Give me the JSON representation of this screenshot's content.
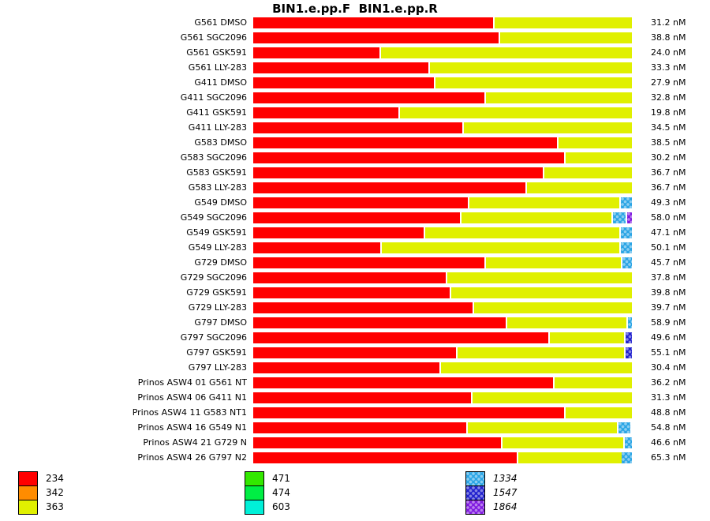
{
  "title": "BIN1.e.pp.F  BIN1.e.pp.R",
  "palette": {
    "234": {
      "hex": "#FF0000",
      "pattern": false
    },
    "342": {
      "hex": "#FF8C00",
      "pattern": false
    },
    "363": {
      "hex": "#E0F000",
      "pattern": false
    },
    "471": {
      "hex": "#33E800",
      "pattern": false
    },
    "474": {
      "hex": "#00EE44",
      "pattern": false
    },
    "603": {
      "hex": "#00F0D8",
      "pattern": false
    },
    "1334": {
      "hex": "#2BA5E5",
      "pattern": true
    },
    "1547": {
      "hex": "#2121CE",
      "pattern": true
    },
    "1864": {
      "hex": "#801AE0",
      "pattern": true
    }
  },
  "chart_data": {
    "type": "bar",
    "orientation": "horizontal",
    "title": "BIN1.e.pp.F  BIN1.e.pp.R",
    "unit": "nM",
    "rows": [
      {
        "label": "G561 DMSO",
        "value": 31.2,
        "value_label": "31.2 nM",
        "segments": [
          [
            "234",
            0,
            63.4
          ],
          [
            "363",
            63.8,
            36.2
          ]
        ]
      },
      {
        "label": "G561 SGC2096",
        "value": 38.8,
        "value_label": "38.8 nM",
        "segments": [
          [
            "234",
            0,
            64.8
          ],
          [
            "363",
            65.2,
            34.8
          ]
        ]
      },
      {
        "label": "G561 GSK591",
        "value": 24.0,
        "value_label": "24.0 nM",
        "segments": [
          [
            "234",
            0,
            33.4
          ],
          [
            "363",
            33.8,
            66.2
          ]
        ]
      },
      {
        "label": "G561 LLY-283",
        "value": 33.3,
        "value_label": "33.3 nM",
        "segments": [
          [
            "234",
            0,
            46.3
          ],
          [
            "363",
            46.7,
            53.3
          ]
        ]
      },
      {
        "label": "G411 DMSO",
        "value": 27.9,
        "value_label": "27.9 nM",
        "segments": [
          [
            "234",
            0,
            47.7
          ],
          [
            "363",
            48.1,
            51.9
          ]
        ]
      },
      {
        "label": "G411 SGC2096",
        "value": 32.8,
        "value_label": "32.8 nM",
        "segments": [
          [
            "234",
            0,
            61.1
          ],
          [
            "363",
            61.5,
            38.5
          ]
        ]
      },
      {
        "label": "G411 GSK591",
        "value": 19.8,
        "value_label": "19.8 nM",
        "segments": [
          [
            "234",
            0,
            38.4
          ],
          [
            "363",
            38.8,
            61.2
          ]
        ]
      },
      {
        "label": "G411 LLY-283",
        "value": 34.5,
        "value_label": "34.5 nM",
        "segments": [
          [
            "234",
            0,
            55.2
          ],
          [
            "363",
            55.6,
            44.4
          ]
        ]
      },
      {
        "label": "G583 DMSO",
        "value": 38.5,
        "value_label": "38.5 nM",
        "segments": [
          [
            "234",
            0,
            80.2
          ],
          [
            "363",
            80.6,
            19.4
          ]
        ]
      },
      {
        "label": "G583 SGC2096",
        "value": 30.2,
        "value_label": "30.2 nM",
        "segments": [
          [
            "234",
            0,
            82.1
          ],
          [
            "363",
            82.5,
            17.5
          ]
        ]
      },
      {
        "label": "G583 GSK591",
        "value": 36.7,
        "value_label": "36.7 nM",
        "segments": [
          [
            "234",
            0,
            76.5
          ],
          [
            "363",
            76.9,
            23.1
          ]
        ]
      },
      {
        "label": "G583 LLY-283",
        "value": 36.7,
        "value_label": "36.7 nM",
        "segments": [
          [
            "234",
            0,
            71.9
          ],
          [
            "363",
            72.3,
            27.7
          ]
        ]
      },
      {
        "label": "G549 DMSO",
        "value": 49.3,
        "value_label": "49.3 nM",
        "segments": [
          [
            "234",
            0,
            56.7
          ],
          [
            "363",
            57.1,
            39.6
          ],
          [
            "1334",
            97.1,
            2.9
          ]
        ]
      },
      {
        "label": "G549 SGC2096",
        "value": 58.0,
        "value_label": "58.0 nM",
        "segments": [
          [
            "234",
            0,
            54.6
          ],
          [
            "363",
            55.0,
            39.6
          ],
          [
            "1334",
            95.0,
            3.3
          ],
          [
            "1864",
            98.7,
            1.3
          ]
        ]
      },
      {
        "label": "G549 GSK591",
        "value": 47.1,
        "value_label": "47.1 nM",
        "segments": [
          [
            "234",
            0,
            45.0
          ],
          [
            "363",
            45.4,
            51.3
          ],
          [
            "1334",
            97.1,
            2.9
          ]
        ]
      },
      {
        "label": "G549 LLY-283",
        "value": 50.1,
        "value_label": "50.1 nM",
        "segments": [
          [
            "234",
            0,
            33.6
          ],
          [
            "363",
            34.0,
            62.7
          ],
          [
            "1334",
            97.1,
            2.9
          ]
        ]
      },
      {
        "label": "G729 DMSO",
        "value": 45.7,
        "value_label": "45.7 nM",
        "segments": [
          [
            "234",
            0,
            61.1
          ],
          [
            "363",
            61.5,
            35.6
          ],
          [
            "1334",
            97.5,
            2.5
          ]
        ]
      },
      {
        "label": "G729 SGC2096",
        "value": 37.8,
        "value_label": "37.8 nM",
        "segments": [
          [
            "234",
            0,
            50.9
          ],
          [
            "363",
            51.3,
            48.7
          ]
        ]
      },
      {
        "label": "G729 GSK591",
        "value": 39.8,
        "value_label": "39.8 nM",
        "segments": [
          [
            "234",
            0,
            51.9
          ],
          [
            "363",
            52.3,
            47.7
          ]
        ]
      },
      {
        "label": "G729 LLY-283",
        "value": 39.7,
        "value_label": "39.7 nM",
        "segments": [
          [
            "234",
            0,
            57.9
          ],
          [
            "363",
            58.3,
            41.7
          ]
        ]
      },
      {
        "label": "G797 DMSO",
        "value": 58.9,
        "value_label": "58.9 nM",
        "segments": [
          [
            "234",
            0,
            66.7
          ],
          [
            "363",
            67.1,
            31.5
          ],
          [
            "1334",
            99.0,
            1.0
          ]
        ]
      },
      {
        "label": "G797 SGC2096",
        "value": 49.6,
        "value_label": "49.6 nM",
        "segments": [
          [
            "234",
            0,
            77.9
          ],
          [
            "363",
            78.3,
            19.6
          ],
          [
            "1547",
            98.3,
            1.7
          ]
        ]
      },
      {
        "label": "G797 GSK591",
        "value": 55.1,
        "value_label": "55.1 nM",
        "segments": [
          [
            "234",
            0,
            53.6
          ],
          [
            "363",
            54.0,
            43.9
          ],
          [
            "1547",
            98.3,
            1.7
          ]
        ]
      },
      {
        "label": "G797 LLY-283",
        "value": 30.4,
        "value_label": "30.4 nM",
        "segments": [
          [
            "234",
            0,
            49.2
          ],
          [
            "363",
            49.6,
            50.4
          ]
        ]
      },
      {
        "label": "Prinos ASW4 01 G561 NT",
        "value": 36.2,
        "value_label": "36.2 nM",
        "segments": [
          [
            "234",
            0,
            79.2
          ],
          [
            "363",
            79.6,
            20.4
          ]
        ]
      },
      {
        "label": "Prinos ASW4 06 G411 N1",
        "value": 31.3,
        "value_label": "31.3 nM",
        "segments": [
          [
            "234",
            0,
            57.5
          ],
          [
            "363",
            57.9,
            42.1
          ]
        ]
      },
      {
        "label": "Prinos ASW4 11 G583 NT1",
        "value": 48.8,
        "value_label": "48.8 nM",
        "segments": [
          [
            "234",
            0,
            82.1
          ],
          [
            "363",
            82.5,
            17.5
          ]
        ]
      },
      {
        "label": "Prinos ASW4 16 G549 N1",
        "value": 54.8,
        "value_label": "54.8 nM",
        "segments": [
          [
            "234",
            0,
            56.3
          ],
          [
            "363",
            56.7,
            39.4
          ],
          [
            "1334",
            96.5,
            3.1
          ]
        ]
      },
      {
        "label": "Prinos ASW4 21 G729 N",
        "value": 46.6,
        "value_label": "46.6 nM",
        "segments": [
          [
            "234",
            0,
            65.4
          ],
          [
            "363",
            65.8,
            32.0
          ],
          [
            "1334",
            98.1,
            1.9
          ]
        ]
      },
      {
        "label": "Prinos ASW4 26 G797 N2",
        "value": 65.3,
        "value_label": "65.3 nM",
        "segments": [
          [
            "234",
            0,
            69.6
          ],
          [
            "363",
            70.0,
            27.2
          ],
          [
            "1334",
            97.3,
            2.7
          ]
        ]
      }
    ],
    "legend_columns": [
      {
        "keys": [
          "234",
          "342",
          "363"
        ]
      },
      {
        "keys": [
          "471",
          "474",
          "603"
        ]
      },
      {
        "keys": [
          "1334",
          "1547",
          "1864"
        ]
      }
    ]
  }
}
